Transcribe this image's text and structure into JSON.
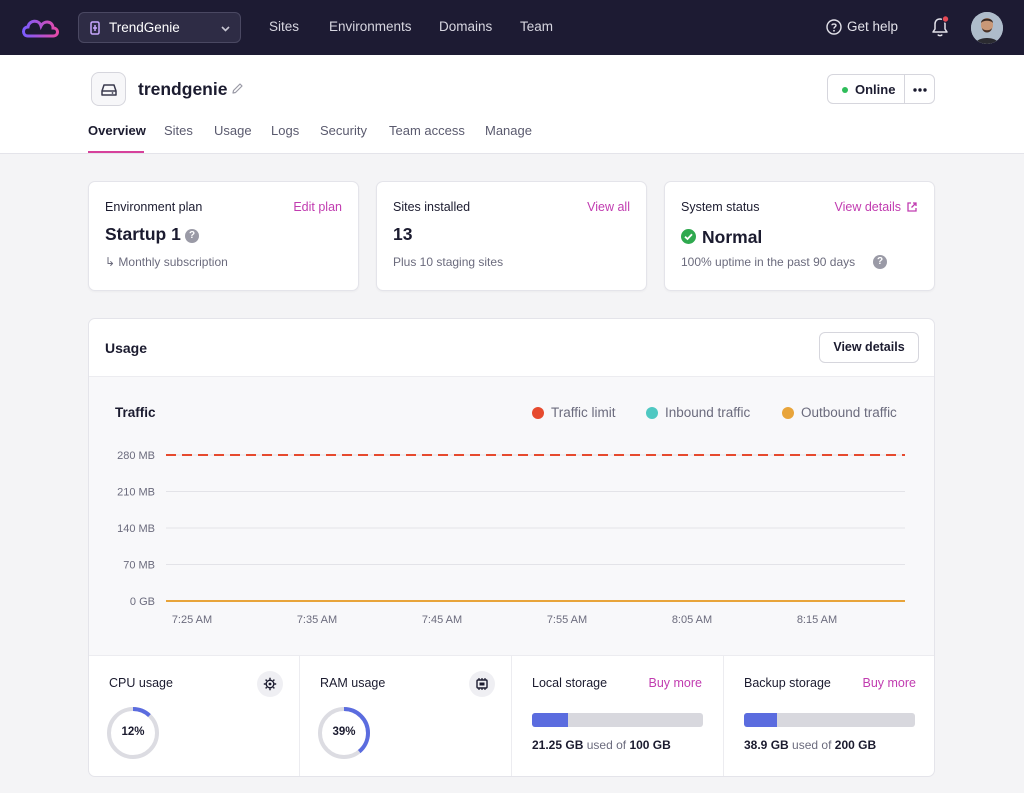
{
  "nav": {
    "switcher_label": "TrendGenie",
    "links": [
      "Sites",
      "Environments",
      "Domains",
      "Team"
    ],
    "help_label": "Get help"
  },
  "header": {
    "env_name": "trendgenie",
    "status_label": "Online",
    "tabs": [
      "Overview",
      "Sites",
      "Usage",
      "Logs",
      "Security",
      "Team access",
      "Manage"
    ],
    "active_tab": "Overview"
  },
  "cards": {
    "plan": {
      "title": "Environment plan",
      "link": "Edit plan",
      "value": "Startup 1",
      "sub": "Monthly subscription",
      "sub_prefix": "↳"
    },
    "sites": {
      "title": "Sites installed",
      "link": "View all",
      "value": "13",
      "sub": "Plus 10 staging sites"
    },
    "system": {
      "title": "System status",
      "link": "View details",
      "value": "Normal",
      "sub": "100% uptime in the past 90 days"
    }
  },
  "usage": {
    "title": "Usage",
    "details_button": "View details",
    "metrics": {
      "cpu": {
        "title": "CPU usage",
        "value_label": "12%",
        "value": 12
      },
      "ram": {
        "title": "RAM usage",
        "value_label": "39%",
        "value": 39
      },
      "local": {
        "title": "Local storage",
        "link": "Buy more",
        "used": "21.25 GB",
        "mid": "used of",
        "total": "100 GB",
        "fraction": 0.2125
      },
      "backup": {
        "title": "Backup storage",
        "link": "Buy more",
        "used": "38.9 GB",
        "mid": "used of",
        "total": "200 GB",
        "fraction": 0.1945
      }
    }
  },
  "chart_data": {
    "type": "line",
    "title": "Traffic",
    "x": [
      "7:25 AM",
      "7:35 AM",
      "7:45 AM",
      "7:55 AM",
      "8:05 AM",
      "8:15 AM"
    ],
    "yticks": [
      "280 MB",
      "210 MB",
      "140 MB",
      "70 MB",
      "0 GB"
    ],
    "ylim": [
      0,
      280
    ],
    "series": [
      {
        "name": "Traffic limit",
        "color": "#e64a2e",
        "values": [
          280,
          280,
          280,
          280,
          280,
          280
        ],
        "style": "dashed"
      },
      {
        "name": "Inbound traffic",
        "color": "#4fc8c2",
        "values": [
          0,
          0,
          0,
          0,
          0,
          0
        ]
      },
      {
        "name": "Outbound traffic",
        "color": "#e8a43a",
        "values": [
          0,
          0,
          0,
          0,
          0,
          0
        ]
      }
    ],
    "grid": true,
    "legend": "top-right"
  },
  "colors": {
    "accent": "#c13cb0",
    "nav_bg": "#1d1b33",
    "online": "#2fbd5a",
    "bar": "#5b6cdf"
  }
}
